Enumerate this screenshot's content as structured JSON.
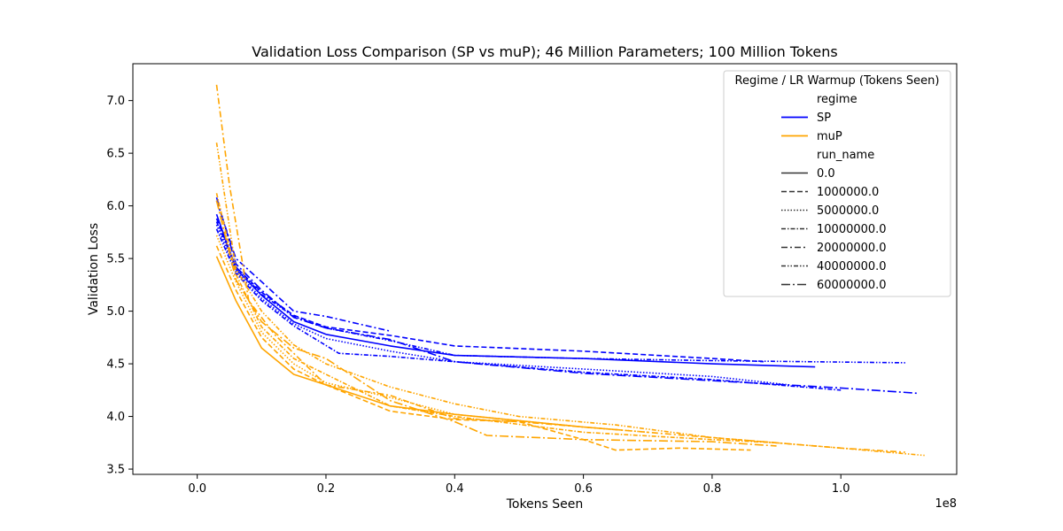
{
  "chart_data": {
    "type": "line",
    "title": "Validation Loss Comparison (SP vs muP); 46 Million Parameters; 100 Million Tokens",
    "xlabel": "Tokens Seen",
    "ylabel": "Validation Loss",
    "x_offset_label": "1e8",
    "xlim": [
      -10000000,
      118000000
    ],
    "ylim": [
      3.45,
      7.35
    ],
    "x_ticks": [
      0,
      20000000,
      40000000,
      60000000,
      80000000,
      100000000
    ],
    "x_tick_labels": [
      "0.0",
      "0.2",
      "0.4",
      "0.6",
      "0.8",
      "1.0"
    ],
    "y_ticks": [
      3.5,
      4.0,
      4.5,
      5.0,
      5.5,
      6.0,
      6.5,
      7.0
    ],
    "y_tick_labels": [
      "3.5",
      "4.0",
      "4.5",
      "5.0",
      "5.5",
      "6.0",
      "6.5",
      "7.0"
    ],
    "grid": false,
    "legend": {
      "title": "Regime / LR Warmup (Tokens Seen)",
      "position": "top-right",
      "hue_header": "regime",
      "style_header": "run_name",
      "regimes": [
        {
          "label": "SP",
          "color": "#0000ff"
        },
        {
          "label": "muP",
          "color": "#ffa500"
        }
      ],
      "run_names": [
        {
          "label": "0.0",
          "dash": "solid"
        },
        {
          "label": "1000000.0",
          "dash": "dashed"
        },
        {
          "label": "5000000.0",
          "dash": "dotted"
        },
        {
          "label": "10000000.0",
          "dash": "dashdot-dense"
        },
        {
          "label": "20000000.0",
          "dash": "dashdot"
        },
        {
          "label": "40000000.0",
          "dash": "dashdotdot"
        },
        {
          "label": "60000000.0",
          "dash": "dashdot-long"
        }
      ]
    },
    "series": [
      {
        "regime": "SP",
        "run_name": "0.0",
        "color": "#0000ff",
        "dash": "solid",
        "x": [
          3000000,
          6000000,
          10000000,
          15000000,
          20000000,
          30000000,
          40000000,
          60000000,
          80000000,
          96000000
        ],
        "y": [
          5.92,
          5.4,
          5.15,
          4.9,
          4.78,
          4.67,
          4.58,
          4.55,
          4.5,
          4.47
        ]
      },
      {
        "regime": "SP",
        "run_name": "1000000.0",
        "color": "#0000ff",
        "dash": "dashed",
        "x": [
          3000000,
          6000000,
          10000000,
          15000000,
          20000000,
          30000000,
          40000000,
          60000000,
          80000000,
          88000000
        ],
        "y": [
          5.88,
          5.42,
          5.18,
          4.96,
          4.85,
          4.77,
          4.67,
          4.62,
          4.55,
          4.52
        ]
      },
      {
        "regime": "SP",
        "run_name": "5000000.0",
        "color": "#0000ff",
        "dash": "dotted",
        "x": [
          3000000,
          6000000,
          10000000,
          15000000,
          20000000,
          30000000,
          40000000,
          60000000,
          80000000,
          92000000
        ],
        "y": [
          5.82,
          5.38,
          5.12,
          4.88,
          4.74,
          4.62,
          4.52,
          4.45,
          4.38,
          4.3
        ]
      },
      {
        "regime": "SP",
        "run_name": "10000000.0",
        "color": "#0000ff",
        "dash": "dashdot-dense",
        "x": [
          3000000,
          6000000,
          10000000,
          15000000,
          22000000,
          30000000,
          40000000,
          60000000,
          80000000,
          100000000
        ],
        "y": [
          5.78,
          5.36,
          5.1,
          4.86,
          4.6,
          4.57,
          4.52,
          4.42,
          4.35,
          4.25
        ]
      },
      {
        "regime": "SP",
        "run_name": "20000000.0",
        "color": "#0000ff",
        "dash": "dashdot",
        "x": [
          3000000,
          6000000,
          10000000,
          15000000,
          20000000,
          30000000
        ],
        "y": [
          6.05,
          5.5,
          5.28,
          5.0,
          4.95,
          4.81
        ]
      },
      {
        "regime": "SP",
        "run_name": "40000000.0",
        "color": "#0000ff",
        "dash": "dashdotdot",
        "x": [
          3000000,
          6000000,
          10000000,
          15000000,
          20000000,
          30000000,
          40000000,
          60000000,
          80000000,
          110000000
        ],
        "y": [
          5.85,
          5.42,
          5.16,
          4.95,
          4.84,
          4.72,
          4.58,
          4.55,
          4.53,
          4.51
        ]
      },
      {
        "regime": "SP",
        "run_name": "60000000.0",
        "color": "#0000ff",
        "dash": "dashdot-long",
        "x": [
          3000000,
          6000000,
          10000000,
          15000000,
          20000000,
          30000000,
          40000000,
          60000000,
          80000000,
          100000000,
          112000000
        ],
        "y": [
          6.08,
          5.45,
          5.2,
          4.94,
          4.84,
          4.73,
          4.52,
          4.41,
          4.34,
          4.27,
          4.22
        ]
      },
      {
        "regime": "muP",
        "run_name": "0.0",
        "color": "#ffa500",
        "dash": "solid",
        "x": [
          3000000,
          6000000,
          10000000,
          15000000,
          20000000,
          30000000,
          40000000,
          60000000,
          66000000
        ],
        "y": [
          5.52,
          5.1,
          4.65,
          4.4,
          4.3,
          4.1,
          4.02,
          3.9,
          3.87
        ]
      },
      {
        "regime": "muP",
        "run_name": "1000000.0",
        "color": "#ffa500",
        "dash": "dashed",
        "x": [
          3000000,
          6000000,
          10000000,
          15000000,
          20000000,
          30000000,
          40000000,
          50000000,
          60000000,
          65000000,
          75000000,
          86000000
        ],
        "y": [
          5.62,
          5.2,
          4.75,
          4.45,
          4.3,
          4.05,
          3.97,
          3.95,
          3.78,
          3.68,
          3.7,
          3.68
        ]
      },
      {
        "regime": "muP",
        "run_name": "5000000.0",
        "color": "#ffa500",
        "dash": "dotted",
        "x": [
          3000000,
          6000000,
          10000000,
          15000000,
          20000000,
          30000000,
          40000000,
          60000000,
          70000000
        ],
        "y": [
          5.72,
          5.28,
          4.8,
          4.5,
          4.32,
          4.18,
          4.02,
          3.9,
          3.85
        ]
      },
      {
        "regime": "muP",
        "run_name": "10000000.0",
        "color": "#ffa500",
        "dash": "dashdot-dense",
        "x": [
          3000000,
          6000000,
          10000000,
          15000000,
          20000000,
          30000000,
          40000000,
          60000000,
          80000000,
          90000000
        ],
        "y": [
          6.12,
          5.35,
          4.85,
          4.55,
          4.4,
          4.1,
          4.0,
          3.85,
          3.78,
          3.75
        ]
      },
      {
        "regime": "muP",
        "run_name": "20000000.0",
        "color": "#ffa500",
        "dash": "dashdot",
        "x": [
          3000000,
          5000000,
          8000000,
          12000000,
          15000000,
          20000000,
          30000000,
          40000000,
          50000000,
          60000000,
          80000000,
          100000000,
          110000000
        ],
        "y": [
          7.15,
          6.2,
          5.1,
          4.78,
          4.6,
          4.3,
          4.2,
          3.98,
          3.95,
          3.9,
          3.8,
          3.7,
          3.66
        ]
      },
      {
        "regime": "muP",
        "run_name": "40000000.0",
        "color": "#ffa500",
        "dash": "dashdotdot",
        "x": [
          3000000,
          6000000,
          10000000,
          15000000,
          20000000,
          30000000,
          40000000,
          50000000,
          65000000,
          80000000,
          100000000,
          113000000
        ],
        "y": [
          6.6,
          5.4,
          5.0,
          4.68,
          4.5,
          4.28,
          4.12,
          4.0,
          3.92,
          3.8,
          3.7,
          3.63
        ]
      },
      {
        "regime": "muP",
        "run_name": "60000000.0",
        "color": "#ffa500",
        "dash": "dashdot-long",
        "x": [
          3000000,
          6000000,
          10000000,
          15000000,
          20000000,
          30000000,
          40000000,
          45000000,
          60000000,
          80000000,
          90000000
        ],
        "y": [
          6.05,
          5.3,
          4.9,
          4.65,
          4.55,
          4.15,
          3.95,
          3.82,
          3.78,
          3.76,
          3.72
        ]
      }
    ]
  }
}
